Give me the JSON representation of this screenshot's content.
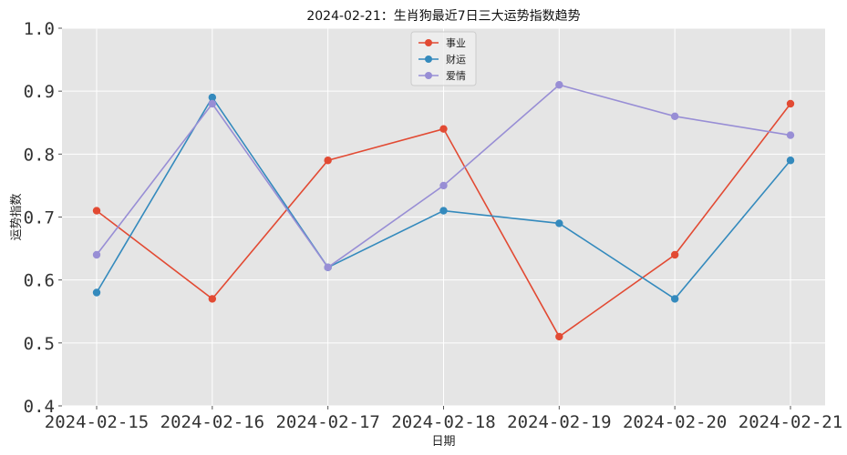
{
  "colors": {
    "background": "#E5E5E5",
    "grid": "#FFFFFF",
    "career": "#E24A33",
    "wealth": "#348ABD",
    "love": "#988ED5"
  },
  "chart_data": {
    "type": "line",
    "title": "2024-02-21：生肖狗最近7日三大运势指数趋势",
    "xlabel": "日期",
    "ylabel": "运势指数",
    "x": [
      "2024-02-15",
      "2024-02-16",
      "2024-02-17",
      "2024-02-18",
      "2024-02-19",
      "2024-02-20",
      "2024-02-21"
    ],
    "ylim": [
      0.4,
      1.0
    ],
    "y_ticks": [
      "0.4",
      "0.5",
      "0.6",
      "0.7",
      "0.8",
      "0.9",
      "1.0"
    ],
    "grid": true,
    "legend_position": "top-center",
    "series": [
      {
        "name": "事业",
        "color": "#E24A33",
        "values": [
          0.71,
          0.57,
          0.79,
          0.84,
          0.51,
          0.64,
          0.88
        ]
      },
      {
        "name": "财运",
        "color": "#348ABD",
        "values": [
          0.58,
          0.89,
          0.62,
          0.71,
          0.69,
          0.57,
          0.79
        ]
      },
      {
        "name": "爱情",
        "color": "#988ED5",
        "values": [
          0.64,
          0.88,
          0.62,
          0.75,
          0.91,
          0.86,
          0.83
        ]
      }
    ]
  }
}
